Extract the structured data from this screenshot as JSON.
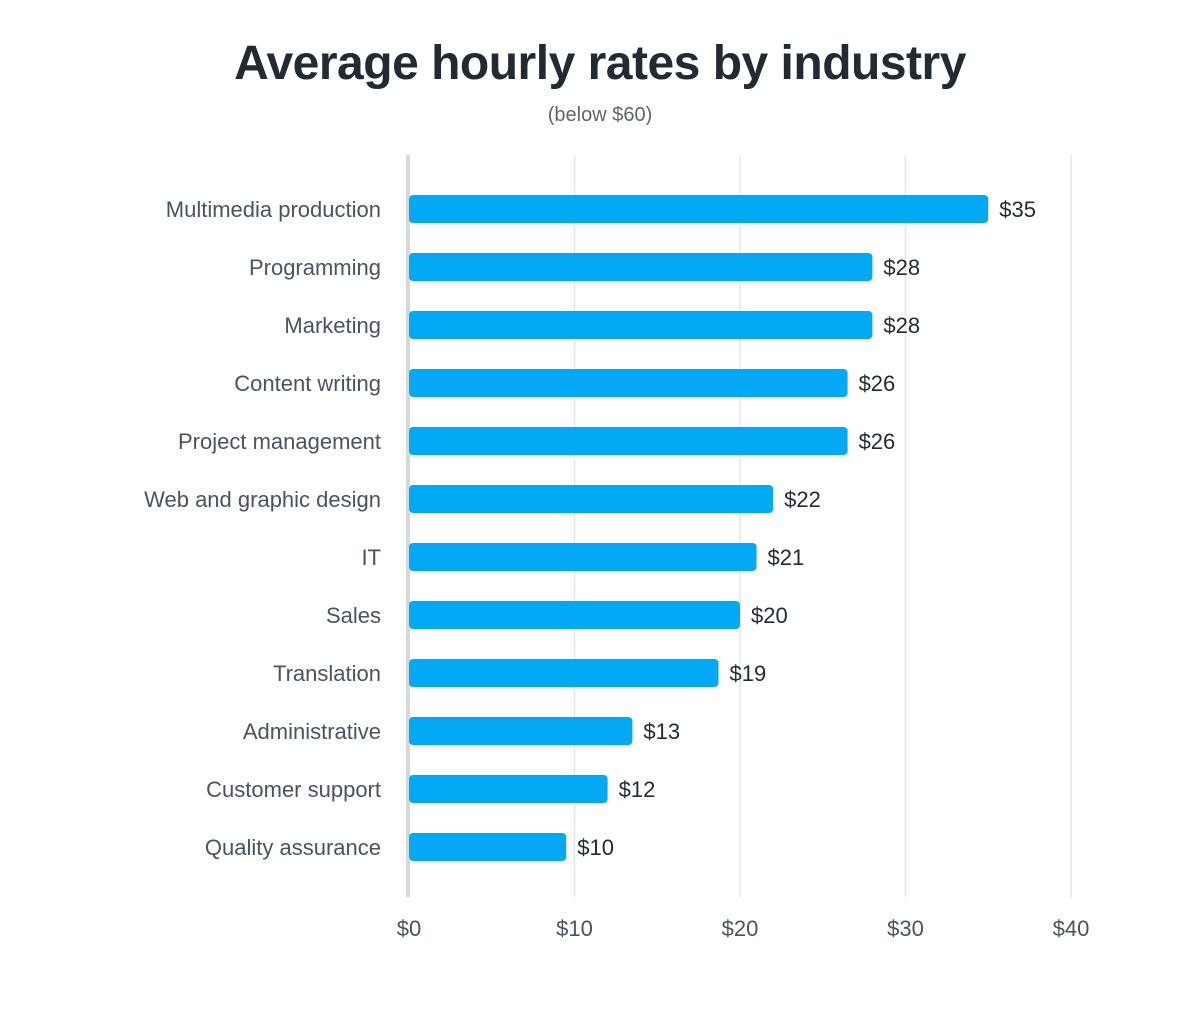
{
  "title": "Average hourly rates by industry",
  "subtitle": "(below $60)",
  "colors": {
    "bar": "#03a9f4",
    "grid": "#e4e6e8",
    "axis": "#d6d8da"
  },
  "chart_data": {
    "type": "bar",
    "orientation": "horizontal",
    "title": "Average hourly rates by industry",
    "subtitle": "(below $60)",
    "categories": [
      "Multimedia production",
      "Programming",
      "Marketing",
      "Content writing",
      "Project management",
      "Web and graphic design",
      "IT",
      "Sales",
      "Translation",
      "Administrative",
      "Customer support",
      "Quality assurance"
    ],
    "values": [
      35,
      28,
      28,
      26.5,
      26.5,
      22,
      21,
      20,
      18.7,
      13.5,
      12,
      9.5
    ],
    "value_labels": [
      "$35",
      "$28",
      "$28",
      "$26",
      "$26",
      "$22",
      "$21",
      "$20",
      "$19",
      "$13",
      "$12",
      "$10"
    ],
    "xlim": [
      0,
      40
    ],
    "xticks": [
      0,
      10,
      20,
      30,
      40
    ],
    "xtick_labels": [
      "$0",
      "$10",
      "$20",
      "$30",
      "$40"
    ],
    "xlabel": "",
    "ylabel": "",
    "grid": true,
    "legend": "none"
  }
}
